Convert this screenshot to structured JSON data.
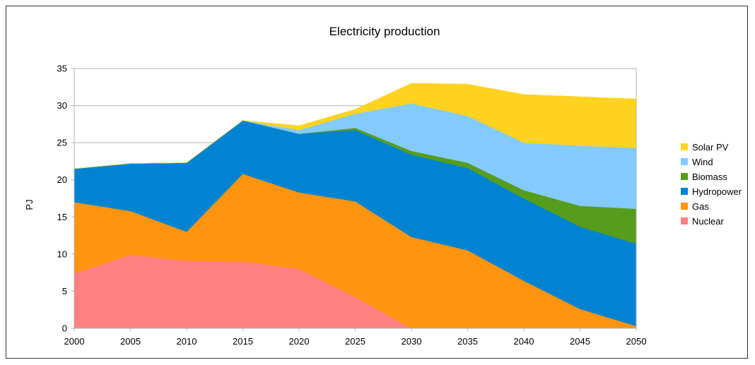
{
  "chart_data": {
    "type": "area",
    "stacked": true,
    "title": "Electricity production",
    "xlabel": "",
    "ylabel": "PJ",
    "x": [
      2000,
      2005,
      2010,
      2015,
      2020,
      2025,
      2030,
      2035,
      2040,
      2045,
      2050
    ],
    "x_tick_labels": [
      "2000",
      "2005",
      "2010",
      "2015",
      "2020",
      "2025",
      "2030",
      "2035",
      "2040",
      "2045",
      "2050"
    ],
    "ylim": [
      0,
      35
    ],
    "y_ticks": [
      0,
      5,
      10,
      15,
      20,
      25,
      30,
      35
    ],
    "y_tick_labels": [
      "0",
      "5",
      "10",
      "15",
      "20",
      "25",
      "30",
      "35"
    ],
    "grid": "horizontal",
    "legend_position": "right",
    "series": [
      {
        "name": "Nuclear",
        "color": "#ff8080",
        "values": [
          7.4,
          9.9,
          9.1,
          9.0,
          8.0,
          4.2,
          0.0,
          0.0,
          0.0,
          0.0,
          0.0
        ]
      },
      {
        "name": "Gas",
        "color": "#ff950e",
        "values": [
          9.6,
          5.9,
          3.9,
          11.8,
          10.3,
          12.9,
          12.3,
          10.5,
          6.4,
          2.6,
          0.3
        ]
      },
      {
        "name": "Hydropower",
        "color": "#0084d1",
        "values": [
          4.5,
          6.4,
          9.3,
          7.2,
          7.9,
          9.6,
          11.1,
          11.1,
          11.1,
          11.1,
          11.1
        ]
      },
      {
        "name": "Biomass",
        "color": "#579d1c",
        "values": [
          0.0,
          0.0,
          0.0,
          0.0,
          0.0,
          0.3,
          0.5,
          0.7,
          1.1,
          2.8,
          4.7
        ]
      },
      {
        "name": "Wind",
        "color": "#83caff",
        "values": [
          0.0,
          0.0,
          0.0,
          0.0,
          0.5,
          1.9,
          6.4,
          6.3,
          6.4,
          8.1,
          8.2
        ]
      },
      {
        "name": "Solar PV",
        "color": "#ffd320",
        "values": [
          0.0,
          0.0,
          0.0,
          0.0,
          0.6,
          0.6,
          2.7,
          4.3,
          6.5,
          6.6,
          6.6
        ]
      }
    ],
    "legend_order": [
      "Solar PV",
      "Wind",
      "Biomass",
      "Hydropower",
      "Gas",
      "Nuclear"
    ]
  },
  "colors": {
    "gridline": "#b3b3b3",
    "axis": "#b3b3b3"
  }
}
